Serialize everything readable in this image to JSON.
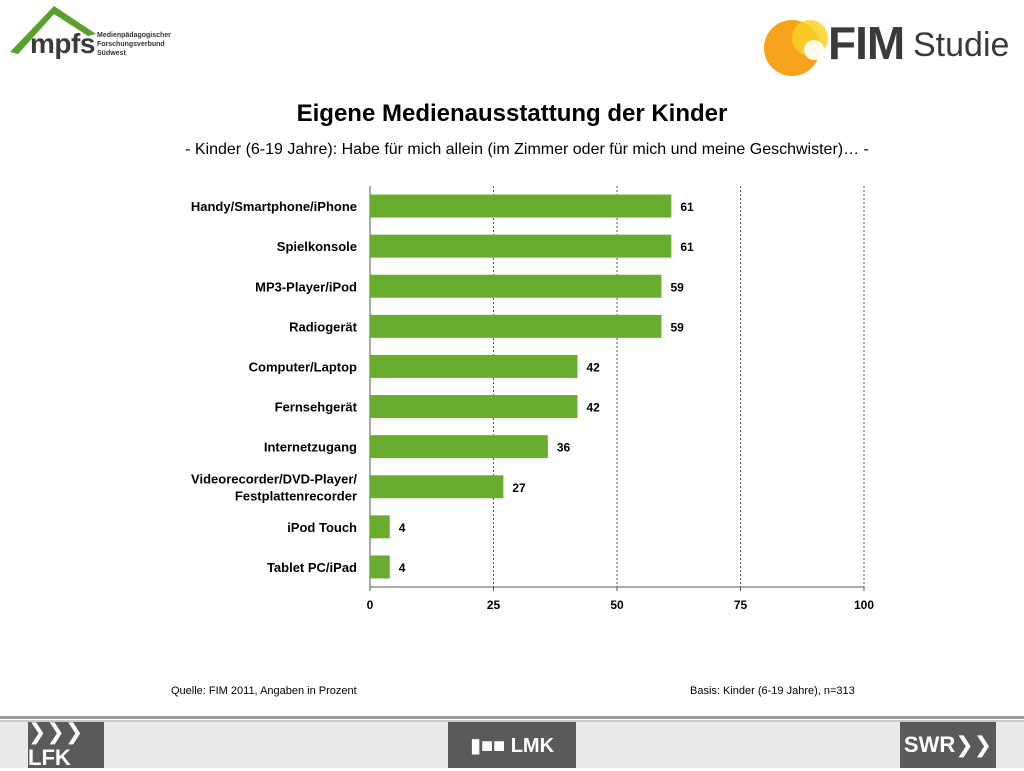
{
  "header": {
    "mpfs_logo_text": "mpfs",
    "mpfs_subtitle_lines": [
      "Medienpädagogischer",
      "Forschungsverbund",
      "Südwest"
    ],
    "fim_brand": "FIM",
    "fim_sub": "Studie"
  },
  "colors": {
    "bar": "#69ad2e",
    "mpfs_green": "#5aa02c",
    "fim_orange": "#f5a31a",
    "fim_yellow": "#fbd125",
    "footer_dark": "#5a5a5a"
  },
  "chart_data": {
    "type": "bar",
    "orientation": "horizontal",
    "title": "Eigene Medienausstattung der Kinder",
    "subtitle": "- Kinder (6-19 Jahre): Habe für mich allein (im Zimmer oder für mich und meine Geschwister)… -",
    "categories": [
      "Handy/Smartphone/iPhone",
      "Spielkonsole",
      "MP3-Player/iPod",
      "Radiogerät",
      "Computer/Laptop",
      "Fernsehgerät",
      "Internetzugang",
      "Videorecorder/DVD-Player/\nFestplattenrecorder",
      "iPod Touch",
      "Tablet PC/iPad"
    ],
    "values": [
      61,
      61,
      59,
      59,
      42,
      42,
      36,
      27,
      4,
      4
    ],
    "xlim": [
      0,
      100
    ],
    "xticks": [
      0,
      25,
      50,
      75,
      100
    ],
    "grid": "vertical dotted",
    "legend": "none"
  },
  "footnotes": {
    "source": "Quelle: FIM 2011, Angaben in Prozent",
    "basis": "Basis: Kinder (6-19 Jahre), n=313"
  },
  "footer": {
    "lfk": "❯❯❯LFK",
    "lmk": "▮■■ LMK",
    "swr": "SWR❯❯"
  }
}
